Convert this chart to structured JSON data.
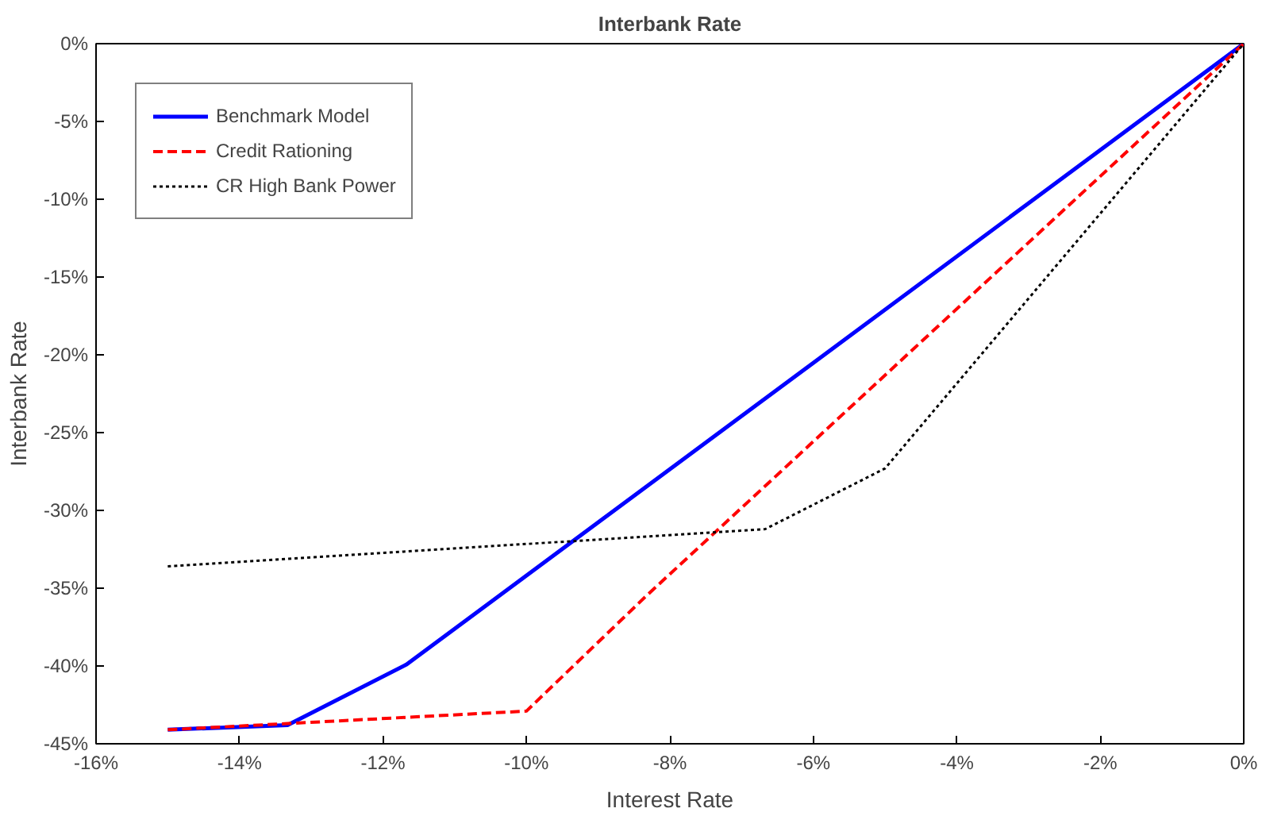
{
  "chart_data": {
    "type": "line",
    "title": "Interbank Rate",
    "xlabel": "Interest Rate",
    "ylabel": "Interbank Rate",
    "xlim": [
      -16,
      0
    ],
    "ylim": [
      -45,
      0
    ],
    "xticks": [
      {
        "value": -16,
        "label": "-16%"
      },
      {
        "value": -14,
        "label": "-14%"
      },
      {
        "value": -12,
        "label": "-12%"
      },
      {
        "value": -10,
        "label": "-10%"
      },
      {
        "value": -8,
        "label": "-8%"
      },
      {
        "value": -6,
        "label": "-6%"
      },
      {
        "value": -4,
        "label": "-4%"
      },
      {
        "value": -2,
        "label": "-2%"
      },
      {
        "value": 0,
        "label": "0%"
      }
    ],
    "yticks": [
      {
        "value": -45,
        "label": "-45%"
      },
      {
        "value": -40,
        "label": "-40%"
      },
      {
        "value": -35,
        "label": "-35%"
      },
      {
        "value": -30,
        "label": "-30%"
      },
      {
        "value": -25,
        "label": "-25%"
      },
      {
        "value": -20,
        "label": "-20%"
      },
      {
        "value": -15,
        "label": "-15%"
      },
      {
        "value": -10,
        "label": "-10%"
      },
      {
        "value": -5,
        "label": "-5%"
      },
      {
        "value": 0,
        "label": "0%"
      }
    ],
    "grid": false,
    "legend": "top left",
    "series": [
      {
        "name": "Benchmark Model",
        "color": "#0000ff",
        "line_style": "solid",
        "x": [
          -15,
          -13.33,
          -11.67,
          0
        ],
        "values": [
          -44.1,
          -43.8,
          -39.9,
          0
        ]
      },
      {
        "name": "Credit Rationing",
        "color": "#ff0000",
        "line_style": "dashed",
        "x": [
          -15,
          -13.33,
          -11.67,
          -10,
          -8.33,
          0
        ],
        "values": [
          -44.1,
          -43.7,
          -43.3,
          -42.9,
          -35.5,
          0
        ]
      },
      {
        "name": "CR High Bank Power",
        "color": "#000000",
        "line_style": "dotted",
        "x": [
          -15,
          -6.67,
          -5,
          0
        ],
        "values": [
          -33.6,
          -31.2,
          -27.3,
          0
        ]
      }
    ]
  }
}
